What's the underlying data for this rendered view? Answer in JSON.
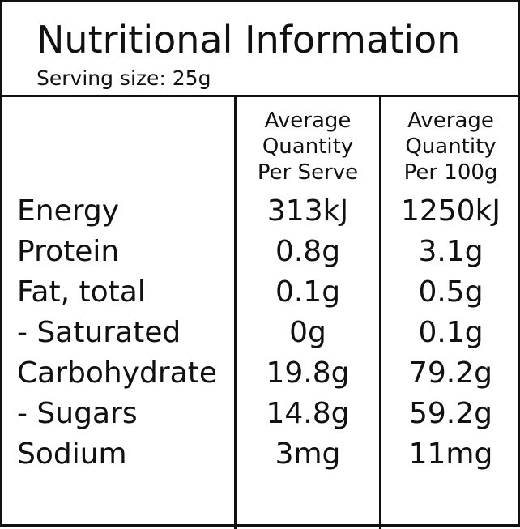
{
  "header": {
    "title": "Nutritional Information",
    "serving": "Serving size: 25g"
  },
  "columns": {
    "per_serve": [
      "Average",
      "Quantity",
      "Per Serve"
    ],
    "per_100g": [
      "Average",
      "Quantity",
      "Per 100g"
    ]
  },
  "rows": [
    {
      "name": "Energy",
      "per_serve": "313kJ",
      "per_100g": "1250kJ"
    },
    {
      "name": "Protein",
      "per_serve": "0.8g",
      "per_100g": "3.1g"
    },
    {
      "name": "Fat, total",
      "per_serve": "0.1g",
      "per_100g": "0.5g"
    },
    {
      "name": "- Saturated",
      "per_serve": "0g",
      "per_100g": "0.1g"
    },
    {
      "name": "Carbohydrate",
      "per_serve": "19.8g",
      "per_100g": "79.2g"
    },
    {
      "name": "- Sugars",
      "per_serve": "14.8g",
      "per_100g": "59.2g"
    },
    {
      "name": "Sodium",
      "per_serve": "3mg",
      "per_100g": "11mg"
    }
  ]
}
